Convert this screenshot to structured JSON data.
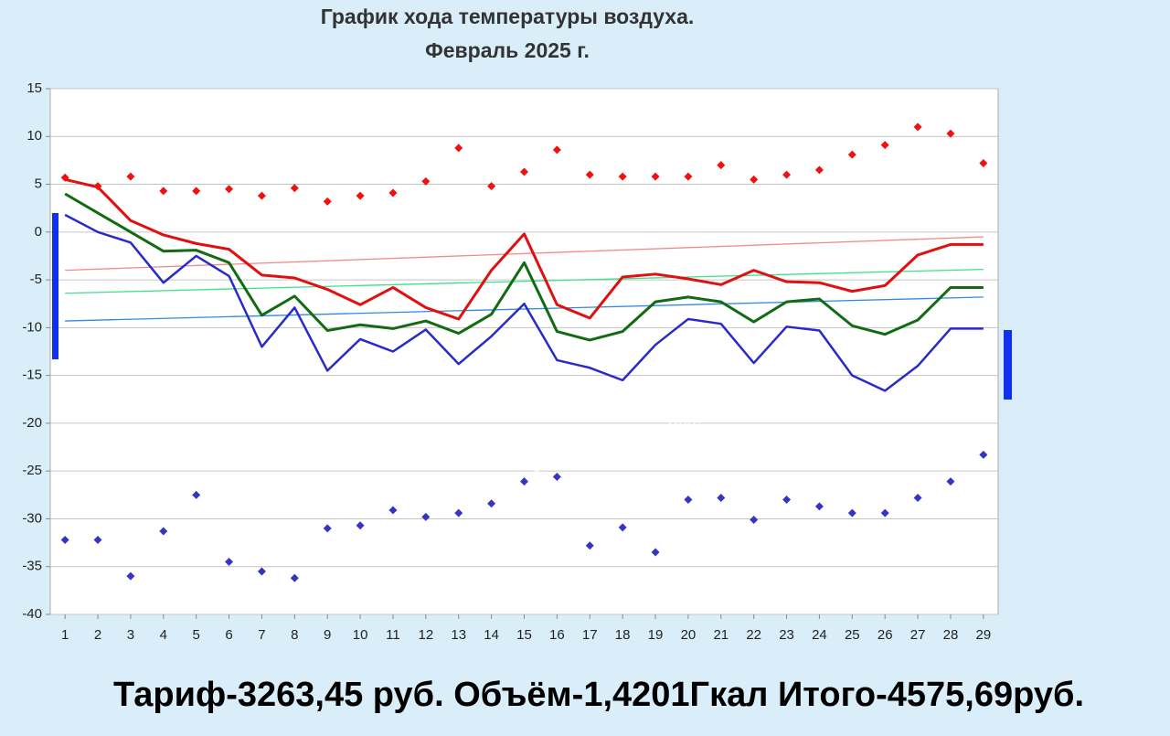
{
  "chart_data": {
    "type": "line",
    "title": "График хода температуры воздуха.",
    "subtitle": "Февраль 2025 г.",
    "x": [
      1,
      2,
      3,
      4,
      5,
      6,
      7,
      8,
      9,
      10,
      11,
      12,
      13,
      14,
      15,
      16,
      17,
      18,
      19,
      20,
      21,
      22,
      23,
      24,
      25,
      26,
      27,
      28,
      29
    ],
    "xlim": [
      0.55,
      29.45
    ],
    "xticks": [
      1,
      2,
      3,
      4,
      5,
      6,
      7,
      8,
      9,
      10,
      11,
      12,
      13,
      14,
      15,
      16,
      17,
      18,
      19,
      20,
      21,
      22,
      23,
      24,
      25,
      26,
      27,
      28,
      29
    ],
    "ylim": [
      -40,
      15
    ],
    "yticks": [
      15,
      10,
      5,
      0,
      -5,
      -10,
      -15,
      -20,
      -25,
      -30,
      -35,
      -40
    ],
    "grid": true,
    "series": [
      {
        "style": "line",
        "width": 1.3,
        "color": "#f08a8a",
        "x": [
          1,
          29
        ],
        "values": [
          -4,
          -0.5
        ]
      },
      {
        "style": "line",
        "width": 1.3,
        "color": "#3ee08a",
        "x": [
          1,
          29
        ],
        "values": [
          -6.4,
          -3.9
        ]
      },
      {
        "style": "line",
        "width": 1.3,
        "color": "#2f8ae0",
        "x": [
          1,
          29
        ],
        "values": [
          -9.3,
          -6.8
        ]
      },
      {
        "style": "line",
        "width": 3,
        "color": "#e01010",
        "values": [
          5.5,
          4.7,
          1.2,
          -0.3,
          -1.2,
          -1.8,
          -4.5,
          -4.8,
          -6,
          -7.6,
          -5.8,
          -7.9,
          -9.1,
          -4,
          -0.2,
          -7.6,
          -9,
          -4.7,
          -4.4,
          -4.9,
          -5.5,
          -4,
          -5.2,
          -5.3,
          -6.2,
          -5.6,
          -2.4,
          -1.3,
          -1.3
        ]
      },
      {
        "style": "line",
        "width": 3,
        "color": "#126b12",
        "values": [
          4,
          2,
          0,
          -2,
          -1.9,
          -3.2,
          -8.7,
          -6.7,
          -10.3,
          -9.7,
          -10.1,
          -9.3,
          -10.6,
          -8.6,
          -3.2,
          -10.4,
          -11.3,
          -10.4,
          -7.3,
          -6.8,
          -7.3,
          -9.4,
          -7.3,
          -7,
          -9.8,
          -10.7,
          -9.2,
          -5.8,
          -5.8
        ]
      },
      {
        "style": "line",
        "width": 2.5,
        "color": "#2a2ac8",
        "values": [
          1.8,
          0,
          -1.1,
          -5.3,
          -2.5,
          -4.6,
          -12,
          -7.9,
          -14.5,
          -11.2,
          -12.5,
          -10.2,
          -13.8,
          -10.9,
          -7.5,
          -13.4,
          -14.2,
          -15.5,
          -11.8,
          -9.1,
          -9.6,
          -13.7,
          -9.9,
          -10.3,
          -15,
          -16.6,
          -14,
          -10.1,
          -10.1
        ]
      },
      {
        "style": "markers",
        "color": "#f01010",
        "values": [
          5.7,
          4.8,
          5.8,
          4.3,
          4.3,
          4.5,
          3.8,
          4.6,
          3.2,
          3.8,
          4.1,
          5.3,
          8.8,
          4.8,
          6.3,
          8.6,
          6,
          5.8,
          5.8,
          5.8,
          7,
          5.5,
          6,
          6.5,
          8.1,
          9.1,
          11,
          10.3,
          7.2
        ]
      },
      {
        "style": "markers",
        "color": "#3535c0",
        "values": [
          -32.2,
          -32.2,
          -36,
          -31.3,
          -27.5,
          -34.5,
          -35.5,
          -36.2,
          -31,
          -30.7,
          -29.1,
          -29.8,
          -29.4,
          -28.4,
          -26.1,
          -25.6,
          -32.8,
          -30.9,
          -33.5,
          -28,
          -27.8,
          -30.1,
          -28,
          -28.7,
          -29.4,
          -29.4,
          -27.8,
          -26.1,
          -23.3
        ]
      }
    ],
    "watermark": [
      "ФОТО ЗАГРУЖЕНО ПОЛЬЗОВАТЕЛЕМ",
      "«МОЁ! Online»"
    ],
    "footer": "Тариф-3263,45 руб. Объём-1,4201Гкал  Итого-4575,69руб."
  }
}
